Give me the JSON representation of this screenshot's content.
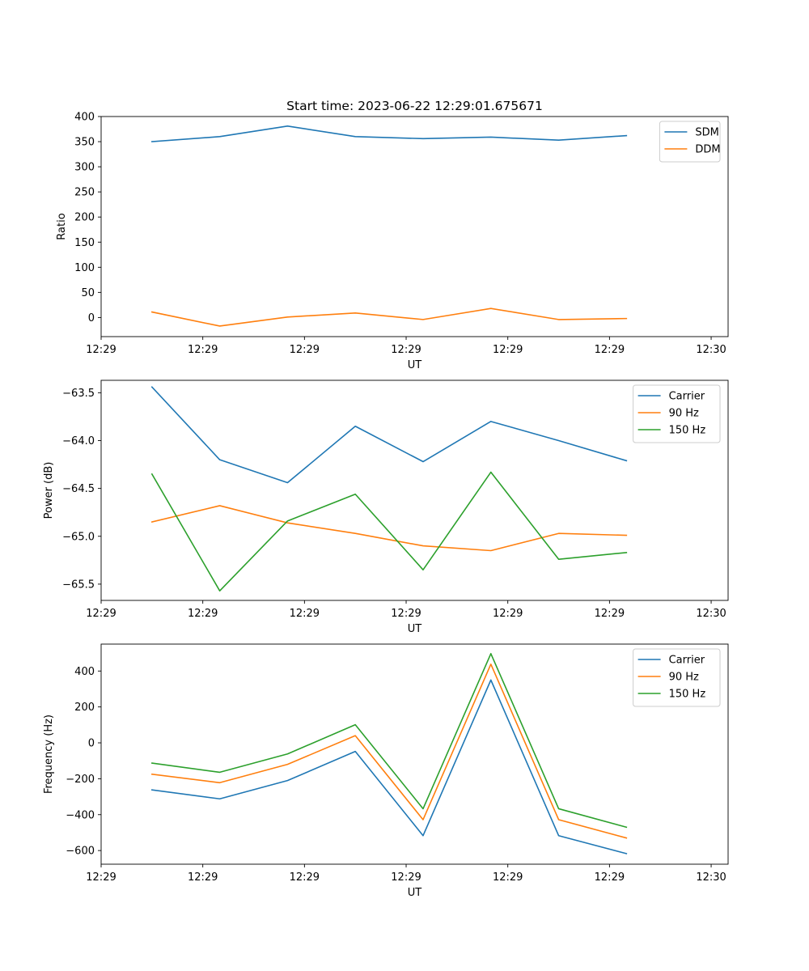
{
  "title": "Start time: 2023-06-22 12:29:01.675671",
  "colors": {
    "blue": "#1f77b4",
    "orange": "#ff7f0e",
    "green": "#2ca02c"
  },
  "chart_data": [
    {
      "type": "line",
      "xlabel": "UT",
      "ylabel": "Ratio",
      "ylim": [
        -38,
        400
      ],
      "yticks": [
        0,
        50,
        100,
        150,
        200,
        250,
        300,
        350,
        400
      ],
      "x_seconds": [
        0,
        1,
        2,
        3,
        4,
        5,
        6,
        7
      ],
      "xlim_seconds": [
        -0.75,
        8.5
      ],
      "xtick_seconds": [
        -0.75,
        0.75,
        2.25,
        3.75,
        5.25,
        6.75,
        8.25
      ],
      "xtick_labels": [
        "12:29",
        "12:29",
        "12:29",
        "12:29",
        "12:29",
        "12:29",
        "12:30"
      ],
      "legend": "top-right",
      "series": [
        {
          "name": "SDM",
          "color": "#1f77b4",
          "values": [
            350,
            360,
            381,
            360,
            356,
            359,
            353,
            362
          ]
        },
        {
          "name": "DDM",
          "color": "#ff7f0e",
          "values": [
            11,
            -17,
            1,
            9,
            -4,
            18,
            -4,
            -2
          ]
        }
      ]
    },
    {
      "type": "line",
      "xlabel": "UT",
      "ylabel": "Power (dB)",
      "ylim": [
        -65.67,
        -63.37
      ],
      "yticks": [
        -65.5,
        -65.0,
        -64.5,
        -64.0,
        -63.5
      ],
      "ytick_labels": [
        "−65.5",
        "−65.0",
        "−64.5",
        "−64.0",
        "−63.5"
      ],
      "x_seconds": [
        0,
        1,
        2,
        3,
        4,
        5,
        6,
        7
      ],
      "xlim_seconds": [
        -0.75,
        8.5
      ],
      "xtick_seconds": [
        -0.75,
        0.75,
        2.25,
        3.75,
        5.25,
        6.75,
        8.25
      ],
      "xtick_labels": [
        "12:29",
        "12:29",
        "12:29",
        "12:29",
        "12:29",
        "12:29",
        "12:30"
      ],
      "legend": "top-right",
      "series": [
        {
          "name": "Carrier",
          "color": "#1f77b4",
          "values": [
            -63.44,
            -64.2,
            -64.44,
            -63.85,
            -64.22,
            -63.8,
            -64.0,
            -64.21
          ]
        },
        {
          "name": "90 Hz",
          "color": "#ff7f0e",
          "values": [
            -64.85,
            -64.68,
            -64.86,
            -64.97,
            -65.1,
            -65.15,
            -64.97,
            -64.99
          ]
        },
        {
          "name": "150 Hz",
          "color": "#2ca02c",
          "values": [
            -64.35,
            -65.57,
            -64.84,
            -64.56,
            -65.35,
            -64.33,
            -65.24,
            -65.17
          ]
        }
      ]
    },
    {
      "type": "line",
      "xlabel": "UT",
      "ylabel": "Frequency (Hz)",
      "ylim": [
        -676,
        550
      ],
      "yticks": [
        -600,
        -400,
        -200,
        0,
        200,
        400
      ],
      "ytick_labels": [
        "−600",
        "−400",
        "−200",
        "0",
        "200",
        "400"
      ],
      "x_seconds": [
        0,
        1,
        2,
        3,
        4,
        5,
        6,
        7
      ],
      "xlim_seconds": [
        -0.75,
        8.5
      ],
      "xtick_seconds": [
        -0.75,
        0.75,
        2.25,
        3.75,
        5.25,
        6.75,
        8.25
      ],
      "xtick_labels": [
        "12:29",
        "12:29",
        "12:29",
        "12:29",
        "12:29",
        "12:29",
        "12:30"
      ],
      "legend": "top-right",
      "series": [
        {
          "name": "Carrier",
          "color": "#1f77b4",
          "values": [
            -262,
            -312,
            -210,
            -48,
            -517,
            350,
            -517,
            -617
          ]
        },
        {
          "name": "90 Hz",
          "color": "#ff7f0e",
          "values": [
            -175,
            -222,
            -120,
            40,
            -428,
            438,
            -428,
            -530
          ]
        },
        {
          "name": "150 Hz",
          "color": "#2ca02c",
          "values": [
            -113,
            -164,
            -62,
            101,
            -367,
            497,
            -367,
            -470
          ]
        }
      ]
    }
  ]
}
